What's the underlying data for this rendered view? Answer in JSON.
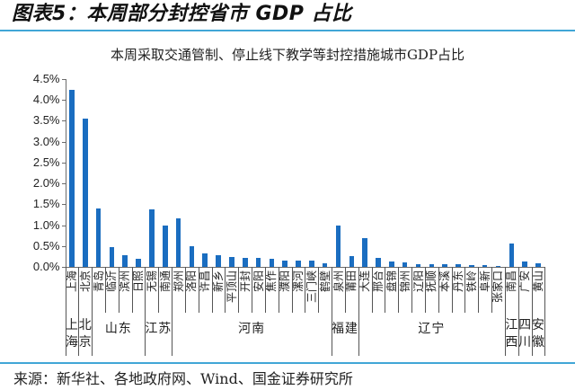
{
  "header": {
    "title": "图表5：本周部分封控省市 GDP 占比"
  },
  "colors": {
    "bar": "#1a6dc0",
    "rule": "#41a6d6",
    "axis": "#6b6b6b"
  },
  "chart_data": {
    "type": "bar",
    "title": "本周采取交通管制、停止线下教学等封控措施城市GDP占比",
    "xlabel": "",
    "ylabel": "",
    "unit": "%",
    "ylim": [
      0,
      4.5
    ],
    "yticks": [
      "0.0%",
      "0.5%",
      "1.0%",
      "1.5%",
      "2.0%",
      "2.5%",
      "3.0%",
      "3.5%",
      "4.0%",
      "4.5%"
    ],
    "grid": false,
    "legend": null,
    "categories": [
      "上海",
      "北京",
      "青岛",
      "临沂",
      "滨州",
      "日照",
      "无锡",
      "南通",
      "郑州",
      "洛阳",
      "许昌",
      "新乡",
      "平顶山",
      "开封",
      "安阳",
      "焦作",
      "濮阳",
      "漯河",
      "三门峡",
      "鹤壁",
      "泉州",
      "莆田",
      "大连",
      "邢台",
      "盘锦",
      "锦州",
      "辽阳",
      "抚顺",
      "本溪",
      "丹东",
      "铁岭",
      "阜新",
      "张家口",
      "南昌",
      "广安",
      "黄山"
    ],
    "values": [
      4.25,
      3.55,
      1.39,
      0.47,
      0.28,
      0.19,
      1.37,
      0.98,
      1.17,
      0.5,
      0.33,
      0.29,
      0.24,
      0.22,
      0.21,
      0.2,
      0.16,
      0.15,
      0.14,
      0.09,
      1.0,
      0.25,
      0.69,
      0.21,
      0.13,
      0.1,
      0.07,
      0.07,
      0.07,
      0.07,
      0.05,
      0.04,
      0.03,
      0.56,
      0.13,
      0.08
    ],
    "groups": [
      {
        "name": "上海",
        "span": 1
      },
      {
        "name": "北京",
        "span": 1
      },
      {
        "name": "山东",
        "span": 4
      },
      {
        "name": "江苏",
        "span": 2
      },
      {
        "name": "河南",
        "span": 12
      },
      {
        "name": "福建",
        "span": 2
      },
      {
        "name": "辽宁",
        "span": 11
      },
      {
        "name": "江西",
        "span": 1
      },
      {
        "name": "四川",
        "span": 1
      },
      {
        "name": "安徽",
        "span": 1
      }
    ]
  },
  "footer": {
    "source": "来源：新华社、各地政府网、Wind、国金证券研究所"
  }
}
